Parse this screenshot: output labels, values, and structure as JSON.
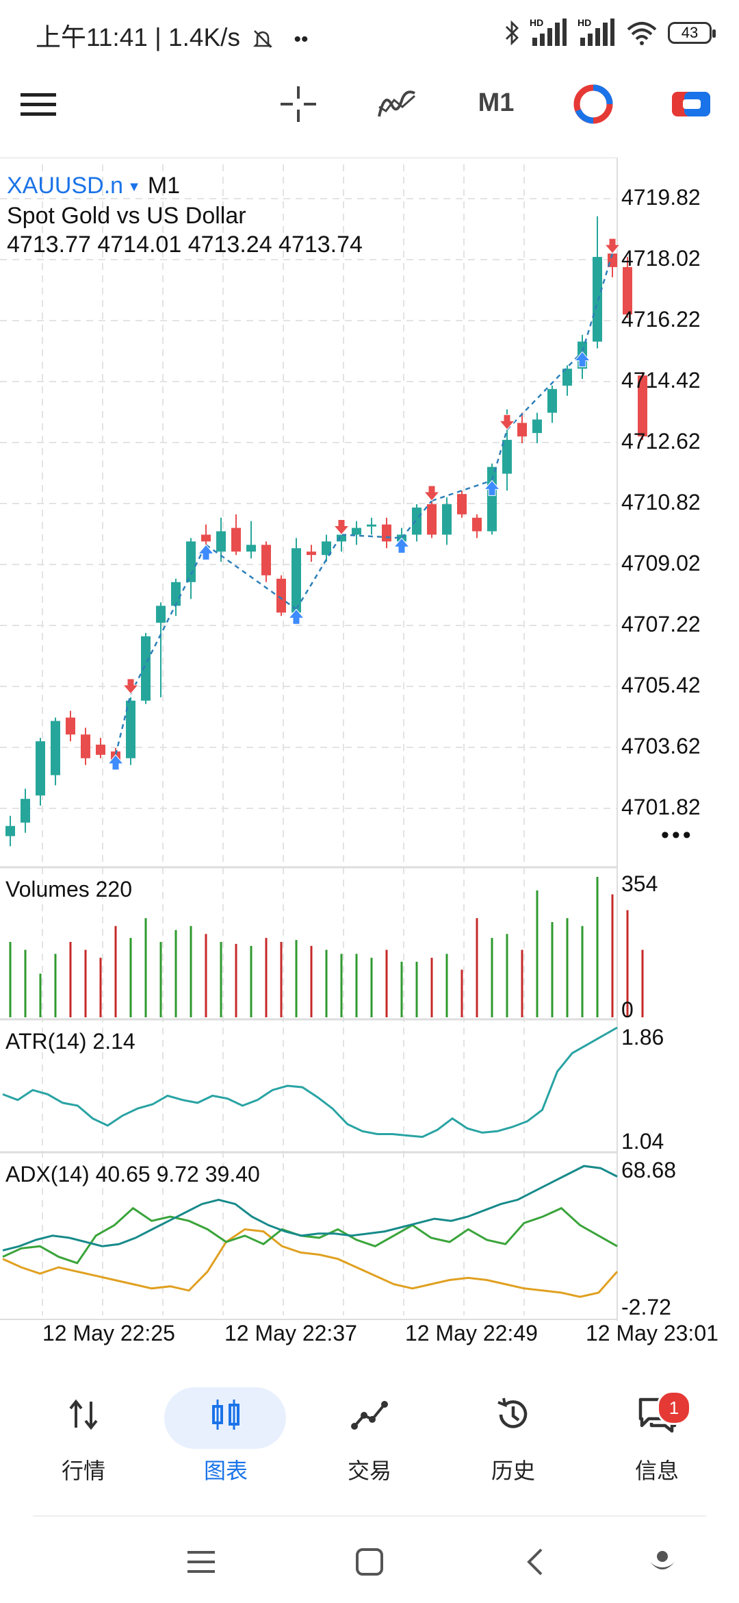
{
  "status_bar": {
    "time": "上午11:41",
    "speed": "1.4K/s",
    "battery": "43",
    "signal1_label": "HD",
    "signal2_label": "HD"
  },
  "toolbar": {
    "timeframe": "M1",
    "icons": [
      "menu-icon",
      "crosshair-icon",
      "indicators-icon",
      "timeframe",
      "one-click-trading-icon",
      "trade-icon"
    ]
  },
  "chart_header": {
    "symbol": "XAUUSD.n",
    "timeframe": "M1",
    "description": "Spot Gold vs US Dollar",
    "ohlc": "4713.77 4714.01 4713.24 4713.74"
  },
  "price_axis": [
    "4719.82",
    "4718.02",
    "4716.22",
    "4714.42",
    "4712.62",
    "4710.82",
    "4709.02",
    "4707.22",
    "4705.42",
    "4703.62",
    "4701.82"
  ],
  "volumes_panel": {
    "label": "Volumes 220",
    "max": "354",
    "min": "0"
  },
  "atr_panel": {
    "label": "ATR(14) 2.14",
    "max": "1.86",
    "min": "1.04"
  },
  "adx_panel": {
    "label": "ADX(14) 40.65 9.72 39.40",
    "max": "68.68",
    "min": "-2.72"
  },
  "time_axis": [
    "12 May 22:25",
    "12 May 22:37",
    "12 May 22:49",
    "12 May 23:01"
  ],
  "colors": {
    "bull": "#26a69a",
    "bear": "#e84c4c",
    "vol_up": "#2e9a2e",
    "vol_down": "#c62828",
    "atr": "#29a3a3",
    "adx": "#178a8a",
    "plus_di": "#3aa43a",
    "minus_di": "#e0a020",
    "accent": "#1a73e8"
  },
  "chart_data": {
    "type": "candlestick",
    "timeframe": "M1",
    "ylim": [
      4701.0,
      4720.5
    ],
    "price_ticks": [
      4719.82,
      4718.02,
      4716.22,
      4714.42,
      4712.62,
      4710.82,
      4709.02,
      4707.22,
      4705.42,
      4703.62,
      4701.82
    ],
    "candles": [
      {
        "o": 4701.0,
        "h": 4701.6,
        "l": 4700.7,
        "c": 4701.3
      },
      {
        "o": 4701.4,
        "h": 4702.4,
        "l": 4701.1,
        "c": 4702.1
      },
      {
        "o": 4702.2,
        "h": 4703.9,
        "l": 4701.9,
        "c": 4703.8
      },
      {
        "o": 4702.8,
        "h": 4704.5,
        "l": 4702.5,
        "c": 4704.4
      },
      {
        "o": 4704.5,
        "h": 4704.7,
        "l": 4703.8,
        "c": 4704.0
      },
      {
        "o": 4704.0,
        "h": 4704.2,
        "l": 4703.1,
        "c": 4703.3
      },
      {
        "o": 4703.7,
        "h": 4703.9,
        "l": 4703.3,
        "c": 4703.4
      },
      {
        "o": 4703.5,
        "h": 4703.6,
        "l": 4703.1,
        "c": 4703.2
      },
      {
        "o": 4703.3,
        "h": 4705.1,
        "l": 4703.1,
        "c": 4705.0
      },
      {
        "o": 4705.0,
        "h": 4707.0,
        "l": 4704.9,
        "c": 4706.9
      },
      {
        "o": 4707.3,
        "h": 4707.9,
        "l": 4705.1,
        "c": 4707.8
      },
      {
        "o": 4707.8,
        "h": 4708.6,
        "l": 4707.5,
        "c": 4708.5
      },
      {
        "o": 4708.5,
        "h": 4709.8,
        "l": 4708.0,
        "c": 4709.7
      },
      {
        "o": 4709.9,
        "h": 4710.2,
        "l": 4709.5,
        "c": 4709.7
      },
      {
        "o": 4709.4,
        "h": 4710.4,
        "l": 4709.1,
        "c": 4710.0
      },
      {
        "o": 4710.1,
        "h": 4710.5,
        "l": 4709.3,
        "c": 4709.4
      },
      {
        "o": 4709.4,
        "h": 4710.3,
        "l": 4709.2,
        "c": 4709.6
      },
      {
        "o": 4709.6,
        "h": 4709.7,
        "l": 4708.5,
        "c": 4708.7
      },
      {
        "o": 4708.6,
        "h": 4708.7,
        "l": 4707.5,
        "c": 4707.6
      },
      {
        "o": 4707.6,
        "h": 4709.8,
        "l": 4707.4,
        "c": 4709.5
      },
      {
        "o": 4709.4,
        "h": 4709.6,
        "l": 4709.1,
        "c": 4709.3
      },
      {
        "o": 4709.3,
        "h": 4709.9,
        "l": 4709.1,
        "c": 4709.7
      },
      {
        "o": 4709.7,
        "h": 4710.1,
        "l": 4709.4,
        "c": 4709.9
      },
      {
        "o": 4709.9,
        "h": 4710.3,
        "l": 4709.6,
        "c": 4710.1
      },
      {
        "o": 4710.2,
        "h": 4710.4,
        "l": 4709.9,
        "c": 4710.2
      },
      {
        "o": 4710.2,
        "h": 4710.4,
        "l": 4709.5,
        "c": 4709.7
      },
      {
        "o": 4709.7,
        "h": 4710.1,
        "l": 4709.5,
        "c": 4709.9
      },
      {
        "o": 4709.9,
        "h": 4710.8,
        "l": 4709.7,
        "c": 4710.7
      },
      {
        "o": 4710.8,
        "h": 4711.2,
        "l": 4709.8,
        "c": 4709.9
      },
      {
        "o": 4709.9,
        "h": 4711.0,
        "l": 4709.6,
        "c": 4710.8
      },
      {
        "o": 4711.1,
        "h": 4711.2,
        "l": 4710.4,
        "c": 4710.5
      },
      {
        "o": 4710.4,
        "h": 4710.5,
        "l": 4709.8,
        "c": 4710.0
      },
      {
        "o": 4710.0,
        "h": 4712.0,
        "l": 4709.9,
        "c": 4711.9
      },
      {
        "o": 4711.7,
        "h": 4713.6,
        "l": 4711.2,
        "c": 4712.7
      },
      {
        "o": 4713.2,
        "h": 4713.5,
        "l": 4712.6,
        "c": 4712.8
      },
      {
        "o": 4712.9,
        "h": 4713.5,
        "l": 4712.6,
        "c": 4713.3
      },
      {
        "o": 4713.5,
        "h": 4714.3,
        "l": 4713.2,
        "c": 4714.2
      },
      {
        "o": 4714.3,
        "h": 4714.9,
        "l": 4714.0,
        "c": 4714.8
      },
      {
        "o": 4714.8,
        "h": 4715.8,
        "l": 4714.5,
        "c": 4715.6
      },
      {
        "o": 4715.6,
        "h": 4719.3,
        "l": 4715.4,
        "c": 4718.1
      },
      {
        "o": 4718.2,
        "h": 4718.6,
        "l": 4717.5,
        "c": 4717.8
      },
      {
        "o": 4717.8,
        "h": 4718.1,
        "l": 4716.3,
        "c": 4716.4
      },
      {
        "o": 4714.6,
        "h": 4714.7,
        "l": 4712.7,
        "c": 4712.8
      }
    ],
    "trade_arrows": [
      {
        "i": 7,
        "dir": "buy",
        "price": 4703.4
      },
      {
        "i": 8,
        "dir": "sell",
        "price": 4705.2
      },
      {
        "i": 13,
        "dir": "buy",
        "price": 4709.6
      },
      {
        "i": 19,
        "dir": "buy",
        "price": 4707.7
      },
      {
        "i": 22,
        "dir": "sell",
        "price": 4709.9
      },
      {
        "i": 26,
        "dir": "buy",
        "price": 4709.8
      },
      {
        "i": 28,
        "dir": "sell",
        "price": 4710.9
      },
      {
        "i": 32,
        "dir": "buy",
        "price": 4711.5
      },
      {
        "i": 33,
        "dir": "sell",
        "price": 4713.0
      },
      {
        "i": 38,
        "dir": "buy",
        "price": 4715.3
      },
      {
        "i": 40,
        "dir": "sell",
        "price": 4718.2
      }
    ],
    "volumes": {
      "ylim": [
        0,
        354
      ],
      "values": [
        190,
        170,
        110,
        160,
        190,
        170,
        150,
        230,
        200,
        250,
        190,
        220,
        230,
        210,
        190,
        185,
        180,
        200,
        190,
        195,
        180,
        170,
        160,
        160,
        150,
        170,
        140,
        140,
        150,
        160,
        120,
        250,
        200,
        210,
        170,
        320,
        240,
        250,
        230,
        360,
        310,
        270,
        170
      ]
    },
    "atr": {
      "ylim": [
        1.04,
        1.86
      ],
      "values": [
        1.39,
        1.35,
        1.42,
        1.39,
        1.33,
        1.31,
        1.22,
        1.17,
        1.24,
        1.29,
        1.32,
        1.38,
        1.35,
        1.33,
        1.38,
        1.36,
        1.31,
        1.35,
        1.42,
        1.45,
        1.44,
        1.37,
        1.29,
        1.18,
        1.13,
        1.11,
        1.11,
        1.1,
        1.09,
        1.14,
        1.22,
        1.15,
        1.12,
        1.13,
        1.16,
        1.2,
        1.28,
        1.55,
        1.68,
        1.74,
        1.8,
        1.86
      ]
    },
    "adx": {
      "ylim": [
        -2.72,
        68.68
      ],
      "adx": [
        28,
        30,
        33,
        35,
        34,
        32,
        30,
        31,
        34,
        38,
        42,
        46,
        50,
        52,
        50,
        44,
        40,
        37,
        35,
        36,
        36,
        35,
        36,
        37,
        39,
        41,
        43,
        42,
        44,
        47,
        50,
        52,
        56,
        60,
        64,
        68,
        67,
        63
      ],
      "plus_di": [
        25,
        29,
        30,
        25,
        22,
        35,
        40,
        48,
        42,
        44,
        42,
        38,
        32,
        35,
        31,
        38,
        35,
        34,
        38,
        33,
        30,
        35,
        40,
        34,
        32,
        38,
        33,
        31,
        41,
        44,
        48,
        40,
        35,
        30
      ],
      "minus_di": [
        24,
        20,
        17,
        20,
        18,
        16,
        14,
        12,
        10,
        11,
        9,
        18,
        32,
        38,
        37,
        30,
        27,
        26,
        24,
        20,
        16,
        12,
        10,
        12,
        14,
        15,
        14,
        12,
        10,
        9,
        8,
        6,
        8,
        18
      ]
    },
    "time_labels": [
      "12 May 22:25",
      "12 May 22:37",
      "12 May 22:49",
      "12 May 23:01"
    ]
  },
  "bottom_nav": [
    {
      "label": "行情",
      "icon": "quotes-icon"
    },
    {
      "label": "图表",
      "icon": "chart-icon",
      "active": true
    },
    {
      "label": "交易",
      "icon": "trade-icon"
    },
    {
      "label": "历史",
      "icon": "history-icon"
    },
    {
      "label": "信息",
      "icon": "messages-icon",
      "badge": "1"
    }
  ]
}
